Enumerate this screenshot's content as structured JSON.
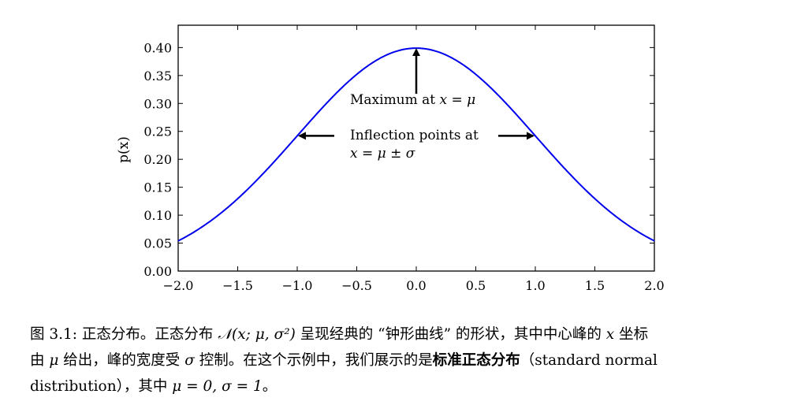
{
  "chart_data": {
    "type": "line",
    "title": "",
    "xlabel": "",
    "ylabel": "p(x)",
    "xlim": [
      -2.0,
      2.0
    ],
    "ylim": [
      0.0,
      0.44
    ],
    "xticks": [
      -2.0,
      -1.5,
      -1.0,
      -0.5,
      0.0,
      0.5,
      1.0,
      1.5,
      2.0
    ],
    "xtick_labels": [
      "−2.0",
      "−1.5",
      "−1.0",
      "−0.5",
      "0.0",
      "0.5",
      "1.0",
      "1.5",
      "2.0"
    ],
    "yticks": [
      0.0,
      0.05,
      0.1,
      0.15,
      0.2,
      0.25,
      0.3,
      0.35,
      0.4
    ],
    "ytick_labels": [
      "0.00",
      "0.05",
      "0.10",
      "0.15",
      "0.20",
      "0.25",
      "0.30",
      "0.35",
      "0.40"
    ],
    "grid": false,
    "series": [
      {
        "color": "#0000ee",
        "function": "normal_pdf",
        "mu": 0,
        "sigma": 1,
        "x": [
          -2.0,
          -1.5,
          -1.0,
          -0.5,
          0.0,
          0.5,
          1.0,
          1.5,
          2.0
        ],
        "values": [
          0.054,
          0.13,
          0.242,
          0.352,
          0.399,
          0.352,
          0.242,
          0.13,
          0.054
        ]
      }
    ],
    "annotations": {
      "maximum": {
        "text_prefix": "Maximum at ",
        "formula": "x = μ",
        "x": 0.0,
        "y": 0.399
      },
      "inflection": {
        "line1": "Inflection points at",
        "line2": "x = μ ± σ",
        "points": [
          {
            "x": -1.0,
            "y": 0.242
          },
          {
            "x": 1.0,
            "y": 0.242
          }
        ]
      }
    }
  },
  "caption": {
    "seg1": "图 3.1: 正态分布。正态分布 ",
    "seg1_math": "𝒩(x; μ, σ²)",
    "seg2": " 呈现经典的 “钟形曲线” 的形状，其中中心峰的 ",
    "seg2_math": "x",
    "seg3": " 坐标",
    "seg4": "由 ",
    "seg4_math": "μ",
    "seg5": " 给出，峰的宽度受 ",
    "seg5_math": "σ",
    "seg6": " 控制。在这个示例中，我们展示的是",
    "bold_term": "标准正态分布",
    "seg7": "（standard normal",
    "seg8": "distribution），其中 ",
    "seg8_math": "μ = 0, σ = 1",
    "seg9": "。"
  }
}
